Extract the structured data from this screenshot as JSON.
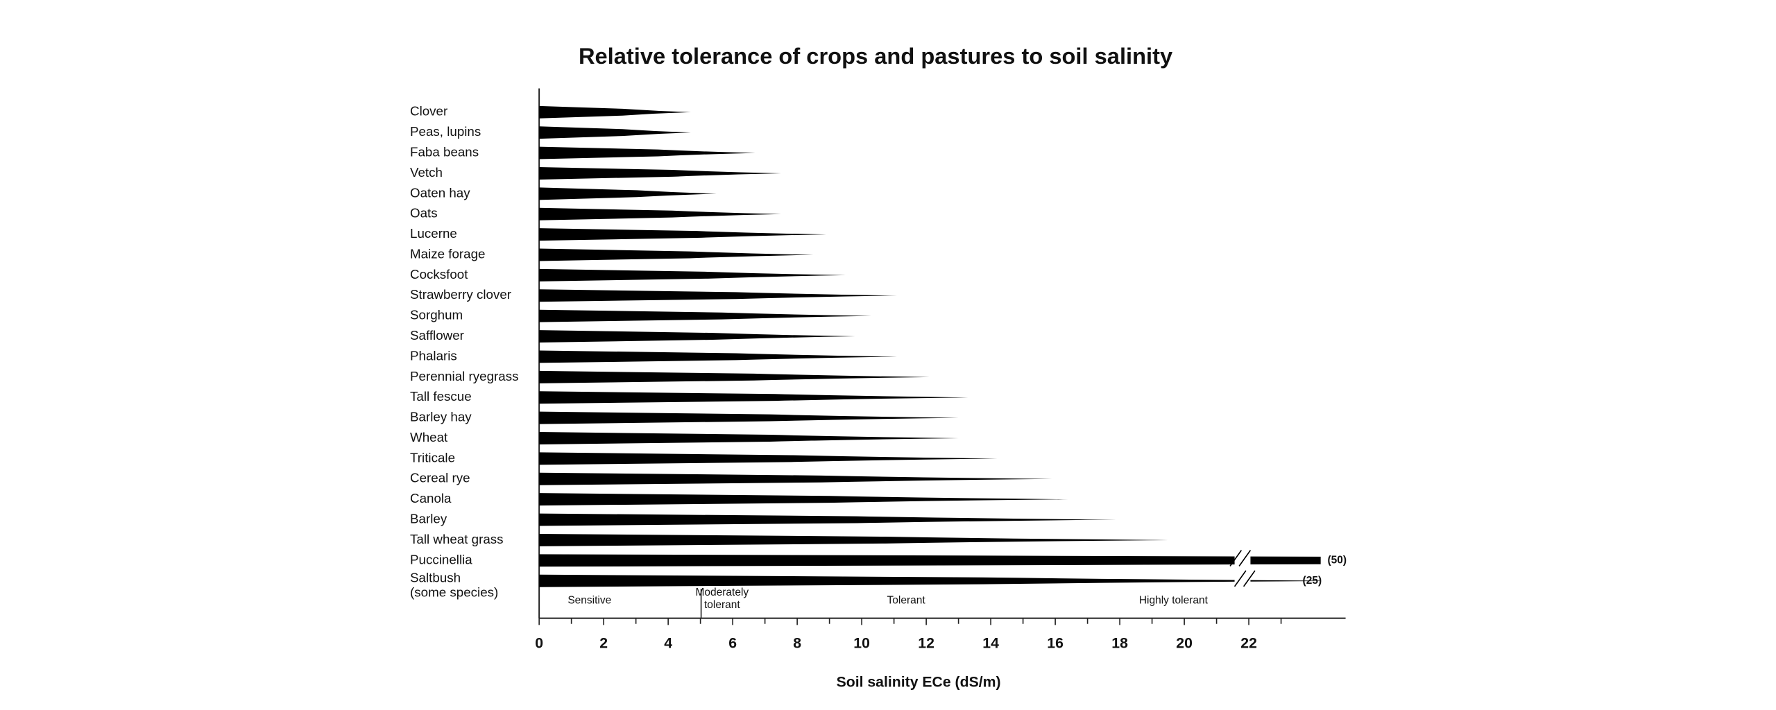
{
  "chart_data": {
    "type": "taper-bar",
    "title": "Relative tolerance of crops and pastures to soil salinity",
    "x_label": "Soil salinity ECe (dS/m)",
    "categories": [
      "Clover",
      "Peas, lupins",
      "Faba beans",
      "Vetch",
      "Oaten hay",
      "Oats",
      "Lucerne",
      "Maize forage",
      "Cocksfoot",
      "Strawberry clover",
      "Sorghum",
      "Safflower",
      "Phalaris",
      "Perennial ryegrass",
      "Tall fescue",
      "Barley hay",
      "Wheat",
      "Triticale",
      "Cereal rye",
      "Canola",
      "Barley",
      "Tall wheat grass",
      "Puccinellia",
      "Saltbush\n(some species)"
    ],
    "values": [
      4.7,
      4.7,
      6.7,
      7.5,
      5.5,
      7.5,
      8.9,
      8.5,
      9.5,
      11.1,
      10.3,
      9.8,
      11.1,
      12.1,
      13.3,
      13,
      13,
      14.2,
      15.9,
      16.4,
      17.9,
      19.5,
      50,
      25
    ],
    "value_labels": [
      null,
      null,
      null,
      null,
      null,
      null,
      null,
      null,
      null,
      null,
      null,
      null,
      null,
      null,
      null,
      null,
      null,
      null,
      null,
      null,
      null,
      null,
      "(50)",
      "(25)"
    ],
    "color": "#000000",
    "xlim": [
      0,
      25
    ],
    "xticks": [
      0,
      2,
      4,
      6,
      8,
      10,
      12,
      14,
      16,
      18,
      20,
      22
    ],
    "zones": [
      "Sensitive",
      "Moderately\ntolerant",
      "Tolerant",
      "Highly tolerant"
    ]
  }
}
